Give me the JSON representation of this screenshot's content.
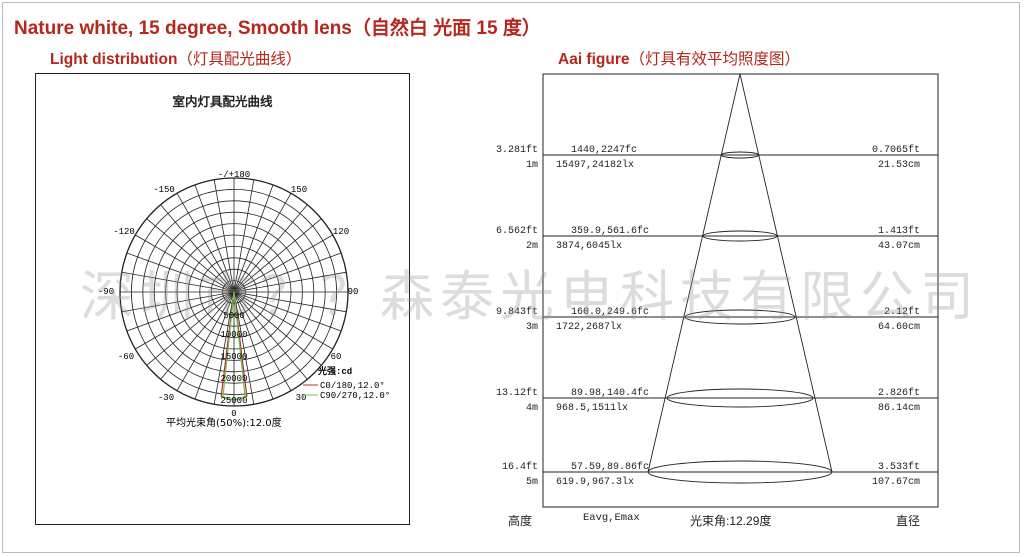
{
  "header": {
    "title": "Nature white, 15 degree, Smooth lens（自然白 光面 15 度）",
    "left_heading": "Light distribution",
    "left_heading_cn": "（灯具配光曲线）",
    "right_heading": "Aai figure",
    "right_heading_cn": "（灯具有效平均照度图）"
  },
  "polar": {
    "title": "室内灯具配光曲线",
    "angle_labels": {
      "top": "-/+180",
      "a150l": "-150",
      "a150r": "150",
      "a120l": "-120",
      "a120r": "120",
      "a90l": "-90",
      "a90r": "90",
      "a60l": "-60",
      "a60r": "60",
      "a30l": "-30",
      "a30r": "30",
      "bottom": "0"
    },
    "radial_labels": [
      "5000",
      "10000",
      "15000",
      "20000",
      "25000"
    ],
    "legend_title": "光强:cd",
    "legend_items": [
      {
        "label": "C0/180,12.0°",
        "color": "#b0302a"
      },
      {
        "label": "C90/270,12.0°",
        "color": "#6fc24a"
      }
    ],
    "beam_note": "平均光束角(50%):12.0度"
  },
  "aai": {
    "rows": [
      {
        "height_ft": "3.281ft",
        "height_m": "1m",
        "fc": "1440,2247fc",
        "lx": "15497,24182lx",
        "dia_ft": "0.7065ft",
        "dia_cm": "21.53cm"
      },
      {
        "height_ft": "6.562ft",
        "height_m": "2m",
        "fc": "359.9,561.6fc",
        "lx": "3874,6045lx",
        "dia_ft": "1.413ft",
        "dia_cm": "43.07cm"
      },
      {
        "height_ft": "9.843ft",
        "height_m": "3m",
        "fc": "160.0,249.6fc",
        "lx": "1722,2687lx",
        "dia_ft": "2.12ft",
        "dia_cm": "64.60cm"
      },
      {
        "height_ft": "13.12ft",
        "height_m": "4m",
        "fc": "89.98,140.4fc",
        "lx": "968.5,1511lx",
        "dia_ft": "2.826ft",
        "dia_cm": "86.14cm"
      },
      {
        "height_ft": "16.4ft",
        "height_m": "5m",
        "fc": "57.59,89.86fc",
        "lx": "619.9,967.3lx",
        "dia_ft": "3.533ft",
        "dia_cm": "107.67cm"
      }
    ],
    "footer": {
      "height": "高度",
      "eavg": "Eavg,Emax",
      "beam": "光束角:12.29度",
      "diameter": "直径"
    }
  },
  "watermark": "深圳市？？森泰光电科技有限公司"
}
